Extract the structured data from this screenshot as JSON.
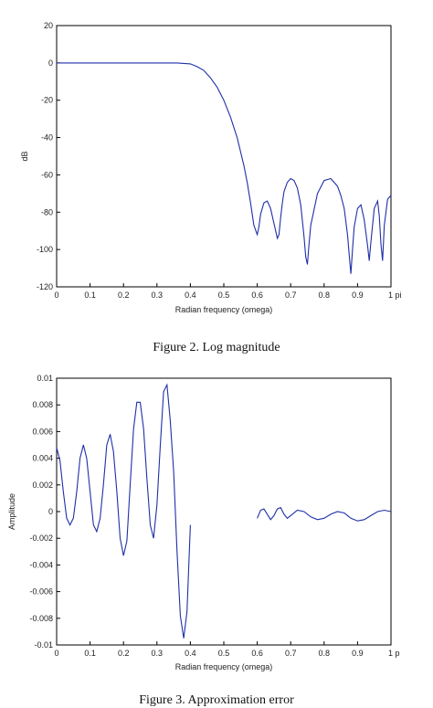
{
  "colors": {
    "line": "#1f2fa8",
    "axis": "#000000",
    "text": "#222222"
  },
  "chart_data": [
    {
      "type": "line",
      "title": "",
      "caption": "Figure 2. Log magnitude",
      "xlabel": "Radian frequency (omega)",
      "ylabel": "dB",
      "xlim": [
        0,
        1
      ],
      "ylim": [
        -120,
        20
      ],
      "x_ticks": [
        0,
        0.1,
        0.2,
        0.3,
        0.4,
        0.5,
        0.6,
        0.7,
        0.8,
        0.9,
        1
      ],
      "x_tick_labels": [
        "0",
        "0.1",
        "0.2",
        "0.3",
        "0.4",
        "0.5",
        "0.6",
        "0.7",
        "0.8",
        "0.9",
        "1 pi"
      ],
      "y_ticks": [
        -120,
        -100,
        -80,
        -60,
        -40,
        -20,
        0,
        20
      ],
      "y_tick_labels": [
        "-120",
        "-100",
        "-80",
        "-60",
        "-40",
        "-20",
        "0",
        "20"
      ],
      "grid": false,
      "series": [
        {
          "x": [
            0,
            0.1,
            0.2,
            0.3,
            0.36,
            0.4,
            0.42,
            0.44,
            0.46,
            0.48,
            0.5,
            0.52,
            0.54,
            0.56,
            0.57,
            0.58,
            0.59,
            0.6,
            0.605,
            0.61,
            0.62,
            0.63,
            0.64,
            0.65,
            0.66,
            0.665,
            0.67,
            0.675,
            0.68,
            0.69,
            0.7,
            0.71,
            0.72,
            0.73,
            0.74,
            0.745,
            0.75,
            0.755,
            0.76,
            0.78,
            0.8,
            0.82,
            0.84,
            0.85,
            0.86,
            0.87,
            0.875,
            0.88,
            0.885,
            0.89,
            0.9,
            0.91,
            0.92,
            0.93,
            0.935,
            0.94,
            0.95,
            0.96,
            0.965,
            0.97,
            0.975,
            0.98,
            0.99,
            1
          ],
          "y": [
            0,
            0,
            0,
            0,
            0,
            -0.5,
            -2,
            -4,
            -8,
            -13,
            -20,
            -29,
            -40,
            -55,
            -64,
            -75,
            -87,
            -92,
            -88,
            -81,
            -75,
            -74,
            -78,
            -86,
            -94,
            -92,
            -83,
            -75,
            -69,
            -64,
            -62,
            -63,
            -67,
            -76,
            -93,
            -104,
            -108,
            -97,
            -87,
            -70,
            -63,
            -62,
            -66,
            -71,
            -78,
            -92,
            -103,
            -113,
            -100,
            -88,
            -78,
            -76,
            -84,
            -98,
            -106,
            -96,
            -78,
            -74,
            -82,
            -97,
            -106,
            -87,
            -73,
            -71
          ]
        }
      ]
    },
    {
      "type": "line",
      "title": "",
      "caption": "Figure 3. Approximation error",
      "xlabel": "Radian frequency (omega)",
      "ylabel": "Amplitude",
      "xlim": [
        0,
        1
      ],
      "ylim": [
        -0.01,
        0.01
      ],
      "x_ticks": [
        0,
        0.1,
        0.2,
        0.3,
        0.4,
        0.5,
        0.6,
        0.7,
        0.8,
        0.9,
        1
      ],
      "x_tick_labels": [
        "0",
        "0.1",
        "0.2",
        "0.3",
        "0.4",
        "0.5",
        "0.6",
        "0.7",
        "0.8",
        "0.9",
        "1 p"
      ],
      "y_ticks": [
        -0.01,
        -0.008,
        -0.006,
        -0.004,
        -0.002,
        0,
        0.002,
        0.004,
        0.006,
        0.008,
        0.01
      ],
      "y_tick_labels": [
        "-0.01",
        "-0.008",
        "-0.006",
        "-0.004",
        "-0.002",
        "0",
        "0.002",
        "0.004",
        "0.006",
        "0.008",
        "0.01"
      ],
      "grid": false,
      "series": [
        {
          "x": [
            0,
            0.01,
            0.02,
            0.03,
            0.04,
            0.05,
            0.06,
            0.07,
            0.08,
            0.09,
            0.1,
            0.11,
            0.12,
            0.13,
            0.14,
            0.15,
            0.16,
            0.17,
            0.18,
            0.19,
            0.2,
            0.21,
            0.22,
            0.23,
            0.24,
            0.25,
            0.26,
            0.27,
            0.28,
            0.29,
            0.3,
            0.31,
            0.32,
            0.33,
            0.34,
            0.35,
            0.36,
            0.37,
            0.38,
            0.39,
            0.4
          ],
          "y": [
            0.0048,
            0.0038,
            0.0015,
            -0.0005,
            -0.001,
            -0.0005,
            0.0015,
            0.004,
            0.005,
            0.004,
            0.0015,
            -0.001,
            -0.0015,
            -0.0005,
            0.002,
            0.005,
            0.0058,
            0.0045,
            0.0015,
            -0.002,
            -0.0033,
            -0.0022,
            0.002,
            0.0062,
            0.0082,
            0.0082,
            0.0062,
            0.0025,
            -0.001,
            -0.002,
            0.0005,
            0.005,
            0.009,
            0.0095,
            0.0068,
            0.003,
            -0.003,
            -0.0078,
            -0.0095,
            -0.0075,
            -0.001
          ]
        },
        {
          "x": [
            0.6,
            0.61,
            0.62,
            0.63,
            0.64,
            0.65,
            0.66,
            0.67,
            0.68,
            0.69,
            0.7,
            0.72,
            0.74,
            0.76,
            0.78,
            0.8,
            0.82,
            0.84,
            0.86,
            0.88,
            0.9,
            0.92,
            0.94,
            0.96,
            0.98,
            1
          ],
          "y": [
            -0.0005,
            0.0001,
            0.0002,
            -0.0002,
            -0.0006,
            -0.0003,
            0.0002,
            0.0003,
            -0.0002,
            -0.0005,
            -0.0003,
            0.0001,
            0,
            -0.0004,
            -0.0006,
            -0.0005,
            -0.0002,
            0,
            -0.0001,
            -0.0005,
            -0.0007,
            -0.0006,
            -0.0003,
            0,
            0.0001,
            0
          ]
        }
      ]
    }
  ]
}
